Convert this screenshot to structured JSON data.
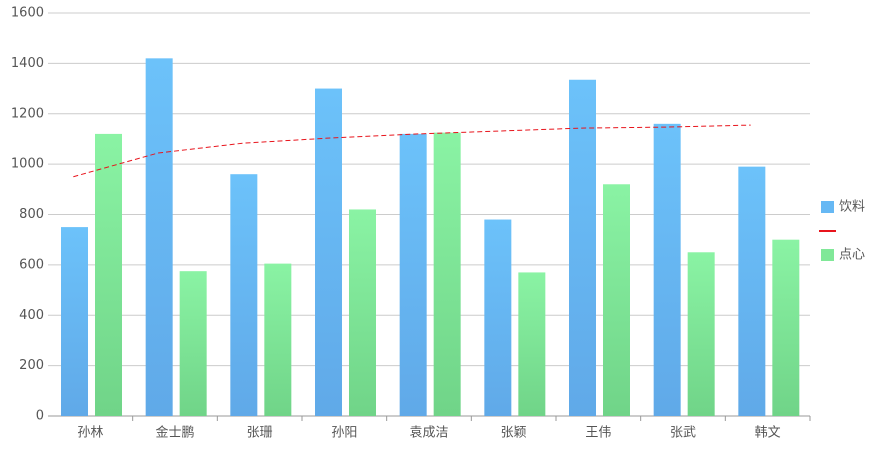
{
  "chart_data": {
    "type": "bar",
    "categories": [
      "孙林",
      "金士鹏",
      "张珊",
      "孙阳",
      "袁成洁",
      "张颖",
      "王伟",
      "张武",
      "韩文"
    ],
    "series": [
      {
        "name": "饮料",
        "type": "bar",
        "color": "#66b8f4",
        "values": [
          750,
          1420,
          960,
          1300,
          1120,
          780,
          1335,
          1160,
          990
        ]
      },
      {
        "type": "line",
        "color": "#e8141c",
        "dashed": true,
        "values": [
          950,
          1044,
          1083,
          1103,
          1119,
          1131,
          1143,
          1147,
          1155
        ]
      },
      {
        "name": "点心",
        "type": "bar",
        "color": "#80e898",
        "values": [
          1120,
          575,
          605,
          820,
          1125,
          570,
          920,
          650,
          700
        ]
      }
    ],
    "ylim": [
      0,
      1600
    ],
    "yticks": [
      0,
      200,
      400,
      600,
      800,
      1000,
      1200,
      1400,
      1600
    ],
    "grid": true,
    "legend": "right"
  }
}
